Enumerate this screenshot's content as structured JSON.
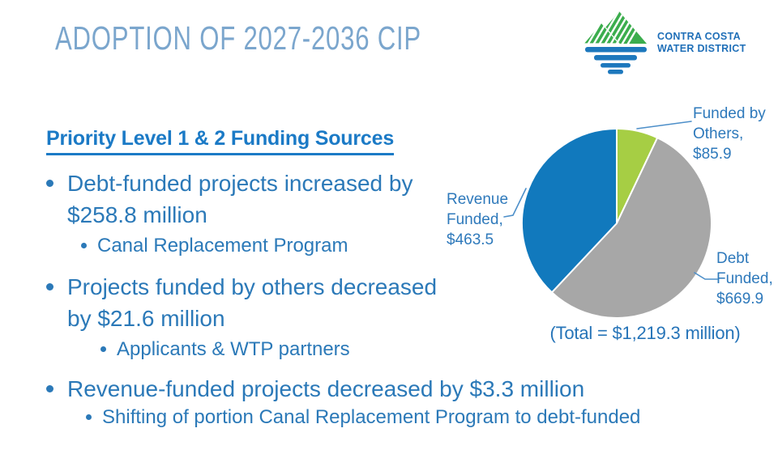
{
  "slide": {
    "title": "ADOPTION OF 2027-2036 CIP",
    "logo": {
      "name_line1": "CONTRA COSTA",
      "name_line2": "WATER DISTRICT"
    },
    "heading": "Priority Level 1 & 2 Funding Sources",
    "bullets": [
      {
        "text": "Debt-funded projects increased by\n$258.8 million",
        "sub": "Canal Replacement Program"
      },
      {
        "text": "Projects funded by others decreased\nby $21.6 million",
        "sub": "Applicants & WTP partners"
      },
      {
        "text": "Revenue-funded projects decreased by $3.3 million",
        "sub": "Shifting of portion Canal Replacement Program to debt-funded"
      }
    ]
  },
  "chart_data": {
    "type": "pie",
    "title": "Priority Level 1 & 2 Funding Sources",
    "unit": "$ millions",
    "start_angle_deg": 0,
    "direction": "clockwise",
    "slices": [
      {
        "label": "Funded by Others",
        "value": 85.9,
        "color": "#a6ce44",
        "callout": "Funded by\nOthers,\n$85.9"
      },
      {
        "label": "Debt Funded",
        "value": 669.9,
        "color": "#a7a7a7",
        "callout": "Debt\nFunded,\n$669.9"
      },
      {
        "label": "Revenue Funded",
        "value": 463.5,
        "color": "#1179bd",
        "callout": "Revenue\nFunded,\n$463.5"
      }
    ],
    "total": 1219.3,
    "total_label": "(Total = $1,219.3 million)"
  },
  "colors": {
    "bullet_text_blue": "#2b79b8",
    "heading_blue": "#1b7ac6",
    "title_blue": "#7ba6cd",
    "leader_line_blue": "#4d8fc9",
    "logo_green": "#3bad4d",
    "logo_blue": "#1d78bd"
  }
}
